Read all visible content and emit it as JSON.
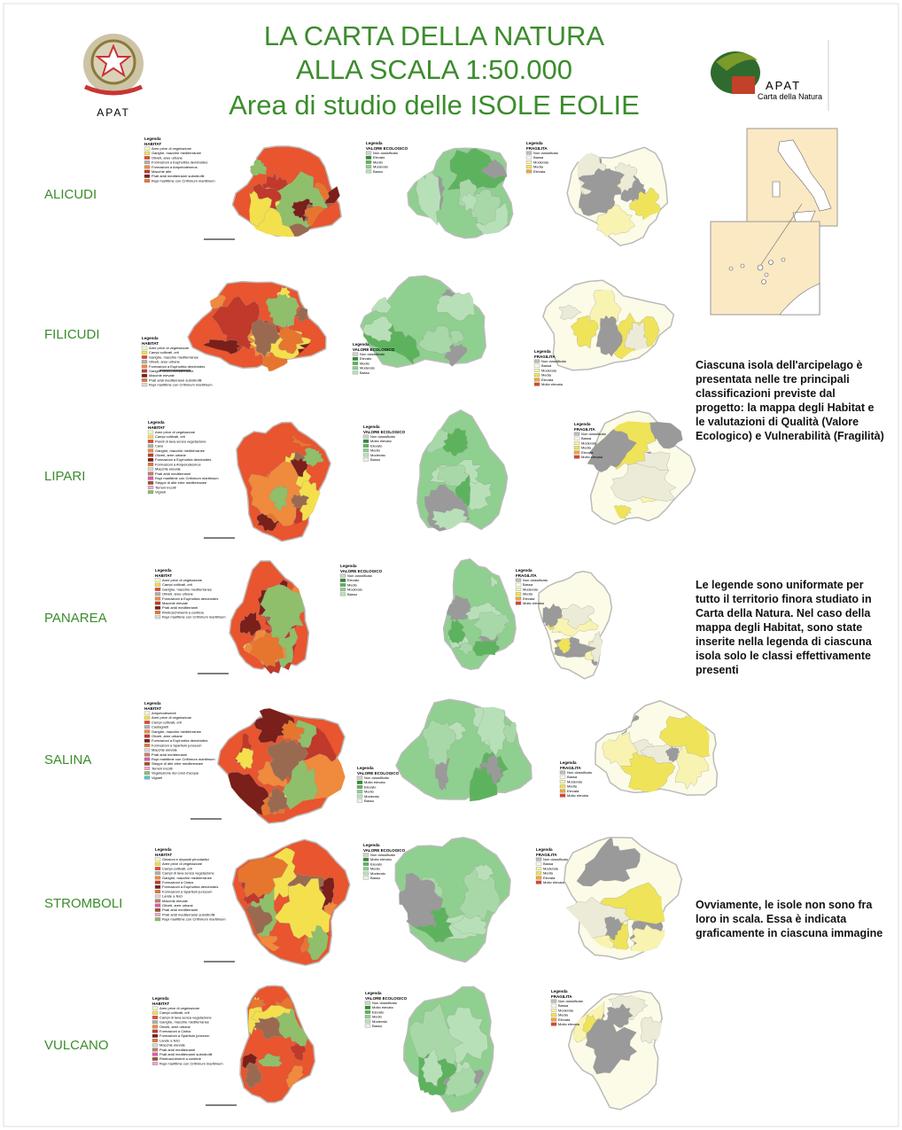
{
  "header": {
    "title_lines": [
      "LA CARTA DELLA NATURA",
      "ALLA SCALA 1:50.000",
      "Area di studio delle ISOLE EOLIE"
    ],
    "left_logo_label": "APAT",
    "right_logo": {
      "name": "APAT",
      "subtitle": "Carta della Natura"
    }
  },
  "islands": [
    {
      "name": "ALICUDI",
      "habitat_legend": {
        "title": "Legenda",
        "heading": "HABITAT",
        "items": [
          "Aree prive di vegetazione",
          "Garighe, macchie mediterranee",
          "Oliveti, aree urbane",
          "Formazioni a Euphorbia dendroides",
          "Formazioni a Ampelodesmos",
          "Macchie alte",
          "Prati aridi mediterranei subnitrofili",
          "Rupi marittime con Crithmum maritimum"
        ]
      },
      "valore_legend": {
        "title": "Legenda",
        "heading": "VALORE ECOLOGICO",
        "items": [
          "Non classificato",
          "Elevato",
          "Medio",
          "Moderato",
          "Basso"
        ]
      },
      "fragilita_legend": {
        "title": "Legenda",
        "heading": "FRAGILITA",
        "items": [
          "Non classificato",
          "Bassa",
          "Moderata",
          "Media",
          "Elevata"
        ]
      }
    },
    {
      "name": "FILICUDI",
      "habitat_legend": {
        "title": "Legenda",
        "heading": "HABITAT",
        "items": [
          "Aree prive di vegetazione",
          "Campi coltivati, orti",
          "Garighe, macchie mediterranee",
          "Oliveti, aree urbane",
          "Formazioni a Euphorbia dendroides",
          "Garighe termo-mediterranee",
          "Macchie elevate",
          "Prati aridi mediterranei subnitrofili",
          "Rupi marittime con Crithmum maritimum"
        ]
      },
      "valore_legend": {
        "title": "Legenda",
        "heading": "VALORE ECOLOGICO",
        "items": [
          "Non classificato",
          "Elevato",
          "Medio",
          "Moderato",
          "Basso"
        ]
      },
      "fragilita_legend": {
        "title": "Legenda",
        "heading": "FRAGILITA",
        "items": [
          "Non classificato",
          "Bassa",
          "Moderata",
          "Media",
          "Elevata",
          "Molto elevata"
        ]
      }
    },
    {
      "name": "LIPARI",
      "habitat_legend": {
        "title": "Legenda",
        "heading": "HABITAT",
        "items": [
          "Aree prive di vegetazione",
          "Campi coltivati, orti",
          "Pareti di lava senza vegetazione",
          "Cave",
          "Garighe, macchie mediterranee",
          "Oliveti, aree urbane",
          "Formazioni a Euphorbia dendroides",
          "Formazioni a Ampelodesmos",
          "Macchie elevate",
          "Prati aridi mediterranei",
          "Rupi marittime con Crithmum maritimum",
          "Steppe di alte erbe mediterranee",
          "Terreni incolti",
          "Vigneti"
        ]
      },
      "valore_legend": {
        "title": "Legenda",
        "heading": "VALORE ECOLOGICO",
        "items": [
          "Non classificato",
          "Molto elevato",
          "Elevato",
          "Medio",
          "Moderato",
          "Basso"
        ]
      },
      "fragilita_legend": {
        "title": "Legenda",
        "heading": "FRAGILITA",
        "items": [
          "Non classificato",
          "Bassa",
          "Moderata",
          "Media",
          "Elevata",
          "Molto elevata"
        ]
      }
    },
    {
      "name": "PANAREA",
      "habitat_legend": {
        "title": "Legenda",
        "heading": "HABITAT",
        "items": [
          "Aree prive di vegetazione",
          "Campi coltivati, orti",
          "Garighe, macchie mediterranee",
          "Oliveti, aree urbane",
          "Formazioni a Euphorbia dendroides",
          "Macchie elevate",
          "Prati aridi mediterranei",
          "Rimboschimenti a conifere",
          "Rupi marittime con Crithmum maritimum"
        ]
      },
      "valore_legend": {
        "title": "Legenda",
        "heading": "VALORE ECOLOGICO",
        "items": [
          "Non classificato",
          "Elevato",
          "Medio",
          "Moderato",
          "Basso"
        ]
      },
      "fragilita_legend": {
        "title": "Legenda",
        "heading": "FRAGILITA",
        "items": [
          "Non classificato",
          "Bassa",
          "Moderata",
          "Media",
          "Elevata",
          "Molto elevata"
        ]
      }
    },
    {
      "name": "SALINA",
      "habitat_legend": {
        "title": "Legenda",
        "heading": "HABITAT",
        "items": [
          "Ampelodesmeti",
          "Aree prive di vegetazione",
          "Campi coltivati, orti",
          "Castagneti",
          "Garighe, macchie mediterranee",
          "Oliveti, aree urbane",
          "Formazioni a Euphorbia dendroides",
          "Formazioni a Spartium junceum",
          "Macchie elevate",
          "Prati aridi mediterranei",
          "Rupi marittime con Crithmum maritimum",
          "Steppe di alte erbe mediterranee",
          "Terreni incolti",
          "Vegetazione dei corsi d'acqua",
          "Vigneti"
        ]
      },
      "valore_legend": {
        "title": "Legenda",
        "heading": "VALORE ECOLOGICO",
        "items": [
          "Non classificato",
          "Molto elevato",
          "Elevato",
          "Medio",
          "Moderato",
          "Basso"
        ]
      },
      "fragilita_legend": {
        "title": "Legenda",
        "heading": "FRAGILITA",
        "items": [
          "Non classificato",
          "Bassa",
          "Moderata",
          "Media",
          "Elevata",
          "Molto elevata"
        ]
      }
    },
    {
      "name": "STROMBOLI",
      "habitat_legend": {
        "title": "Legenda",
        "heading": "HABITAT",
        "items": [
          "Ghiaioni e depositi piroclastici",
          "Aree prive di vegetazione",
          "Campi coltivati, orti",
          "Campi di lava senza vegetazione",
          "Garighe, macchie mediterranee",
          "Formazioni a Cistus",
          "Formazioni a Euphorbia dendroides",
          "Formazioni a Spartium junceum",
          "Lande a felci",
          "Macchie elevate",
          "Oliveti, aree urbane",
          "Prati aridi mediterranei",
          "Prati aridi mediterranei subnitrofili",
          "Rupi marittime con Crithmum maritimum"
        ]
      },
      "valore_legend": {
        "title": "Legenda",
        "heading": "VALORE ECOLOGICO",
        "items": [
          "Non classificato",
          "Molto elevato",
          "Elevato",
          "Medio",
          "Moderato",
          "Basso"
        ]
      },
      "fragilita_legend": {
        "title": "Legenda",
        "heading": "FRAGILITA",
        "items": [
          "Non classificato",
          "Bassa",
          "Moderata",
          "Media",
          "Elevata",
          "Molto elevata"
        ]
      }
    },
    {
      "name": "VULCANO",
      "habitat_legend": {
        "title": "Legenda",
        "heading": "HABITAT",
        "items": [
          "Aree prive di vegetazione",
          "Campi coltivati, orti",
          "Campi di lava senza vegetazione",
          "Garighe, macchie mediterranee",
          "Oliveti, aree urbane",
          "Formazioni a Cistus",
          "Formazioni a Spartium junceum",
          "Lande a felci",
          "Macchie elevate",
          "Prati aridi mediterranei",
          "Prati aridi mediterranei subnitrofili",
          "Rimboschimenti a conifere",
          "Rupi marittime con Crithmum maritimum"
        ]
      },
      "valore_legend": {
        "title": "Legenda",
        "heading": "VALORE ECOLOGICO",
        "items": [
          "Non classificato",
          "Molto elevato",
          "Elevato",
          "Medio",
          "Moderato",
          "Basso"
        ]
      },
      "fragilita_legend": {
        "title": "Legenda",
        "heading": "FRAGILITA",
        "items": [
          "Non classificato",
          "Bassa",
          "Moderata",
          "Media",
          "Elevata",
          "Molto elevata"
        ]
      }
    }
  ],
  "notes": [
    "Ciascuna isola dell'arcipelago è presentata nelle tre principali classificazioni previste dal progetto: la mappa degli Habitat e le valutazioni di Qualità (Valore Ecologico) e Vulnerabilità (Fragilità)",
    "Le legende sono uniformate per tutto il territorio finora studiato in Carta della Natura. Nel caso della mappa degli Habitat, sono state inserite nella legenda di ciascuna isola solo le classi effettivamente presenti",
    "Ovviamente, le isole non sono fra loro in scala. Essa è indicata graficamente in ciascuna immagine"
  ]
}
